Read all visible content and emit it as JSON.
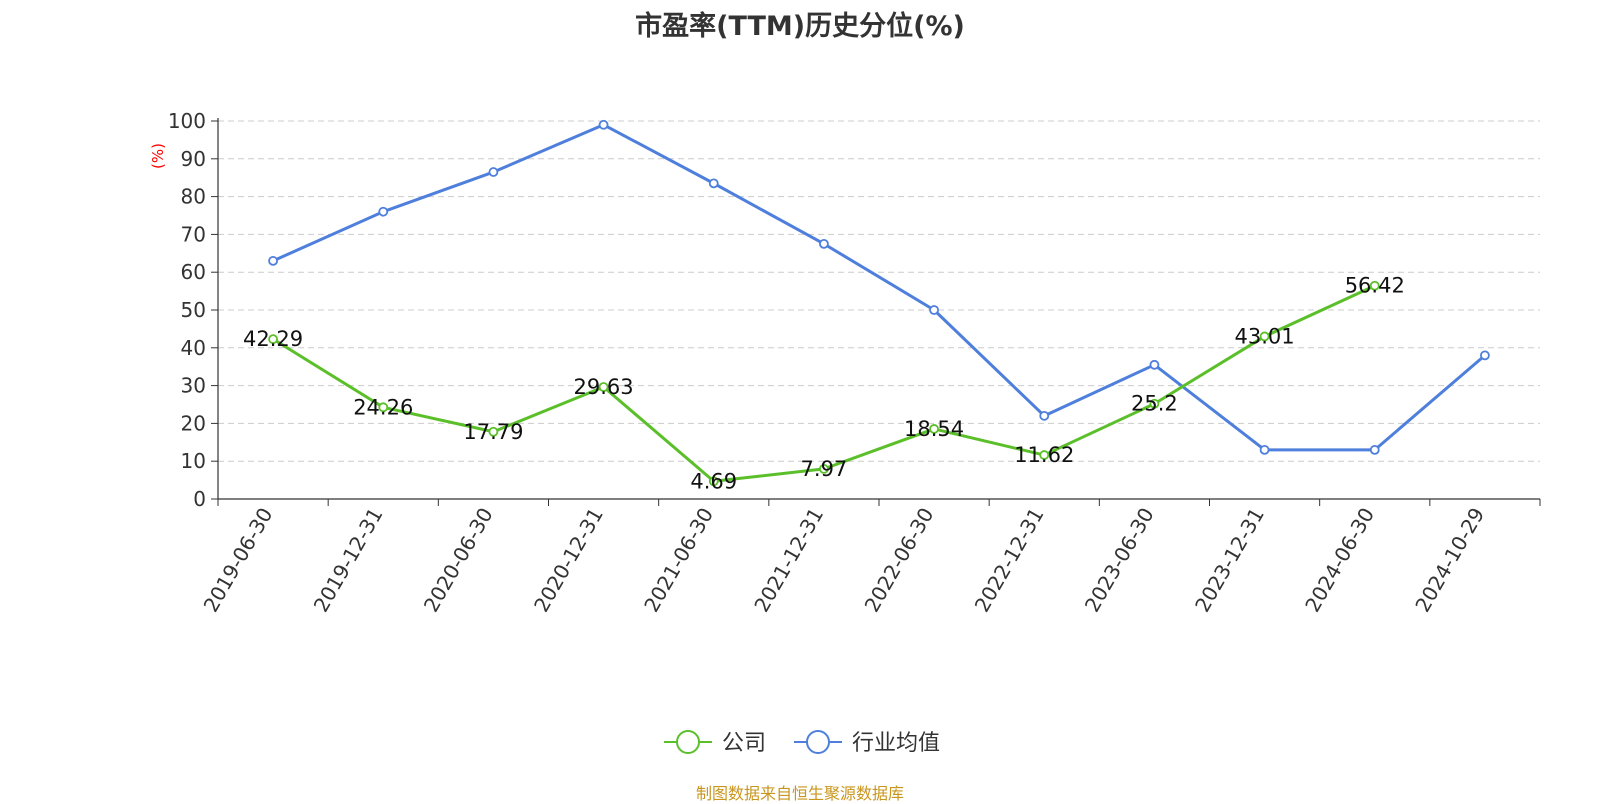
{
  "chart_data": {
    "type": "line",
    "title": "市盈率(TTM)历史分位(%)",
    "ylabel": "(%)",
    "ylim": [
      0,
      100
    ],
    "yticks": [
      0,
      10,
      20,
      30,
      40,
      50,
      60,
      70,
      80,
      90,
      100
    ],
    "categories": [
      "2019-06-30",
      "2019-12-31",
      "2020-06-30",
      "2020-12-31",
      "2021-06-30",
      "2021-12-31",
      "2022-06-30",
      "2022-12-31",
      "2023-06-30",
      "2023-12-31",
      "2024-06-30",
      "2024-10-29"
    ],
    "grid": true,
    "legend_position": "bottom-center",
    "series": [
      {
        "name": "公司",
        "color": "#5bbf2a",
        "values": [
          42.29,
          24.26,
          17.79,
          29.63,
          4.69,
          7.97,
          18.54,
          11.62,
          25.2,
          43.01,
          56.42,
          null
        ],
        "labels": [
          "42.29",
          "24.26",
          "17.79",
          "29.63",
          "4.69",
          "7.97",
          "18.54",
          "11.62",
          "25.2",
          "43.01",
          "56.42",
          ""
        ]
      },
      {
        "name": "行业均值",
        "color": "#4e7fdc",
        "values": [
          63,
          76,
          86.5,
          99,
          83.5,
          67.5,
          50,
          22,
          35.5,
          13,
          13,
          38
        ],
        "labels": []
      }
    ]
  },
  "colors": {
    "unit_label": "#ff0000",
    "axis": "#333333",
    "grid": "#cccccc"
  },
  "footer": {
    "source": "制图数据来自恒生聚源数据库"
  }
}
